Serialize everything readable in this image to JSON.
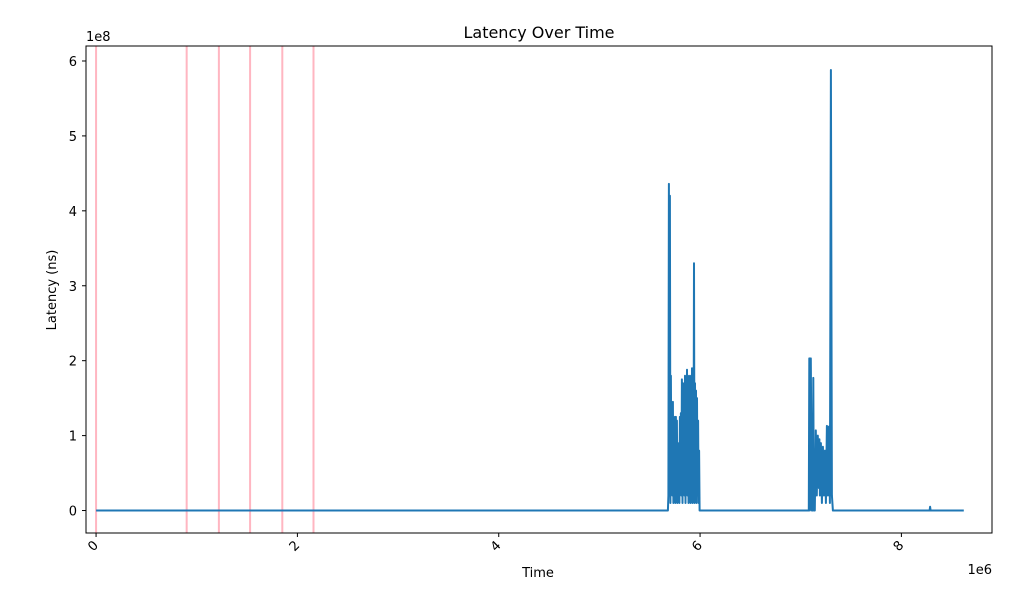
{
  "chart_data": {
    "type": "line",
    "title": "Latency Over Time",
    "xlabel": "Time",
    "ylabel": "Latency (ns)",
    "x_offset_text": "1e6",
    "y_offset_text": "1e8",
    "xlim": [
      -0.1,
      8.9
    ],
    "ylim": [
      -0.3,
      6.2
    ],
    "x_ticks": [
      0,
      2,
      4,
      6,
      8
    ],
    "y_ticks": [
      0,
      1,
      2,
      3,
      4,
      5,
      6
    ],
    "x_tick_labels": [
      "0",
      "2",
      "4",
      "6",
      "8"
    ],
    "y_tick_labels": [
      "0",
      "1",
      "2",
      "3",
      "4",
      "5",
      "6"
    ],
    "grid": false,
    "line_color": "#1f77b4",
    "marker_color": "#ffb6c1",
    "vertical_markers_x": [
      0.0,
      0.9,
      1.22,
      1.53,
      1.85,
      2.16
    ],
    "series": [
      {
        "x": [
          0.0,
          5.68,
          5.685,
          5.69,
          5.695,
          5.7,
          5.705,
          5.71,
          5.715,
          5.72,
          5.725,
          5.73,
          5.735,
          5.74,
          5.745,
          5.75,
          5.755,
          5.76,
          5.765,
          5.77,
          5.775,
          5.78,
          5.785,
          5.79,
          5.795,
          5.8,
          5.805,
          5.81,
          5.815,
          5.82,
          5.825,
          5.83,
          5.835,
          5.84,
          5.845,
          5.85,
          5.855,
          5.86,
          5.865,
          5.87,
          5.875,
          5.88,
          5.885,
          5.89,
          5.895,
          5.9,
          5.905,
          5.91,
          5.915,
          5.92,
          5.925,
          5.93,
          5.935,
          5.94,
          5.945,
          5.95,
          5.955,
          5.96,
          5.965,
          5.97,
          5.975,
          5.98,
          5.985,
          5.99,
          5.995,
          6.0,
          7.05,
          7.08,
          7.085,
          7.09,
          7.1,
          7.11,
          7.12,
          7.125,
          7.13,
          7.14,
          7.15,
          7.16,
          7.17,
          7.18,
          7.185,
          7.19,
          7.2,
          7.21,
          7.22,
          7.23,
          7.24,
          7.25,
          7.26,
          7.27,
          7.28,
          7.29,
          7.3,
          7.31,
          7.315,
          7.32,
          7.33,
          7.34,
          7.35,
          7.36,
          8.25,
          8.28,
          8.285,
          8.29,
          8.62
        ],
        "values": [
          0.0,
          0.0,
          0.2,
          4.36,
          0.5,
          4.2,
          0.1,
          1.8,
          0.3,
          1.4,
          0.2,
          1.45,
          0.1,
          1.1,
          0.2,
          1.25,
          0.1,
          1.25,
          0.3,
          1.2,
          0.1,
          0.9,
          0.2,
          0.8,
          0.1,
          1.25,
          0.3,
          1.3,
          0.2,
          1.75,
          0.1,
          1.7,
          0.3,
          1.6,
          0.2,
          1.8,
          0.1,
          1.6,
          0.4,
          1.88,
          0.2,
          1.8,
          0.1,
          1.65,
          0.2,
          1.8,
          0.1,
          1.7,
          0.2,
          1.9,
          0.1,
          1.75,
          0.2,
          3.3,
          0.1,
          1.7,
          0.2,
          1.6,
          0.1,
          1.5,
          0.2,
          1.2,
          0.1,
          0.8,
          0.0,
          0.0,
          0.0,
          0.0,
          2.03,
          0.0,
          2.03,
          0.0,
          0.0,
          1.77,
          0.0,
          0.0,
          1.07,
          0.2,
          1.0,
          0.3,
          0.95,
          0.2,
          0.9,
          0.1,
          0.85,
          0.2,
          0.8,
          0.1,
          1.13,
          0.2,
          1.12,
          0.1,
          5.88,
          0.2,
          0.1,
          0.0,
          0.0,
          0.0,
          0.0,
          0.0,
          0.0,
          0.0,
          0.05,
          0.0,
          0.0
        ]
      }
    ]
  }
}
